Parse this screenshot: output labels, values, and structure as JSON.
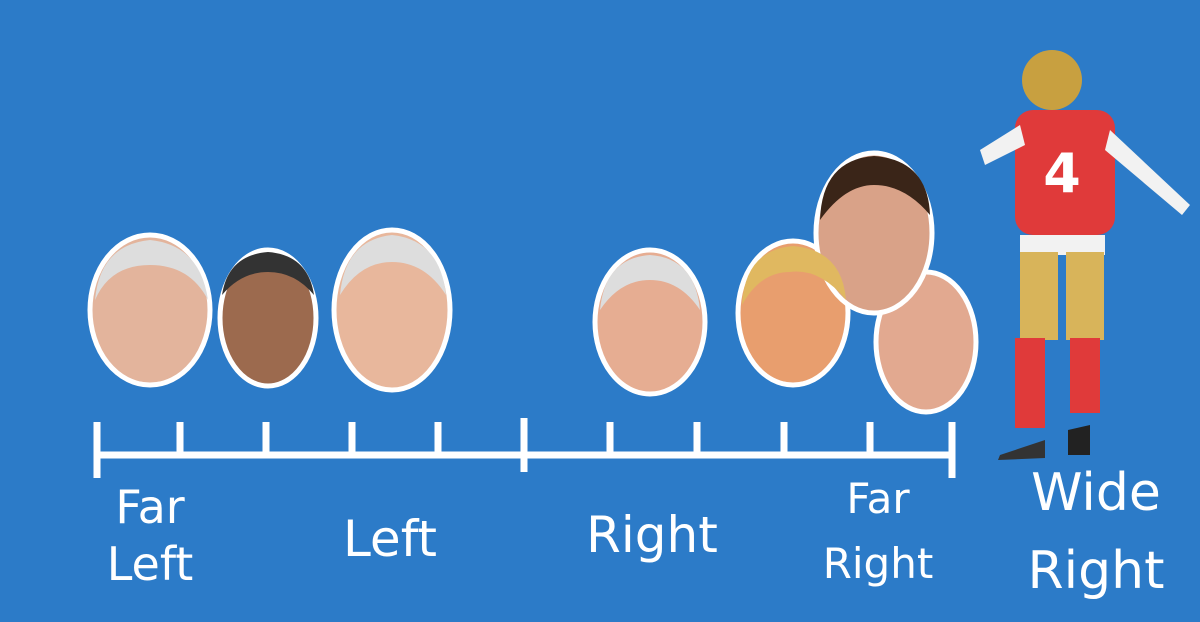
{
  "scale": {
    "labels": [
      {
        "lines": [
          "Far",
          "Left"
        ]
      },
      {
        "lines": [
          "Left"
        ]
      },
      {
        "lines": [
          "Right"
        ]
      },
      {
        "lines": [
          "Far",
          "Right"
        ]
      },
      {
        "lines": [
          "Wide",
          "Right"
        ]
      }
    ]
  }
}
